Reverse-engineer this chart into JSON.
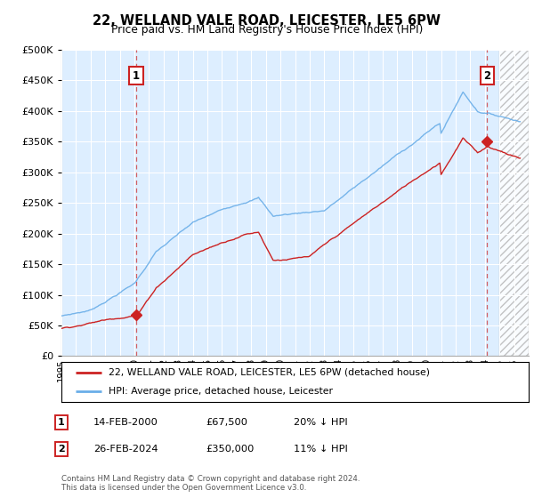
{
  "title": "22, WELLAND VALE ROAD, LEICESTER, LE5 6PW",
  "subtitle": "Price paid vs. HM Land Registry's House Price Index (HPI)",
  "sale1_date": "14-FEB-2000",
  "sale1_price": 67500,
  "sale1_x": 2000.12,
  "sale2_date": "26-FEB-2024",
  "sale2_price": 350000,
  "sale2_x": 2024.15,
  "hpi_color": "#6aaee8",
  "price_color": "#cc2222",
  "bg_color": "#ddeeff",
  "legend_label1": "22, WELLAND VALE ROAD, LEICESTER, LE5 6PW (detached house)",
  "legend_label2": "HPI: Average price, detached house, Leicester",
  "footer": "Contains HM Land Registry data © Crown copyright and database right 2024.\nThis data is licensed under the Open Government Licence v3.0.",
  "ylim_max": 500000,
  "xlim_min": 1995,
  "xlim_max": 2027
}
